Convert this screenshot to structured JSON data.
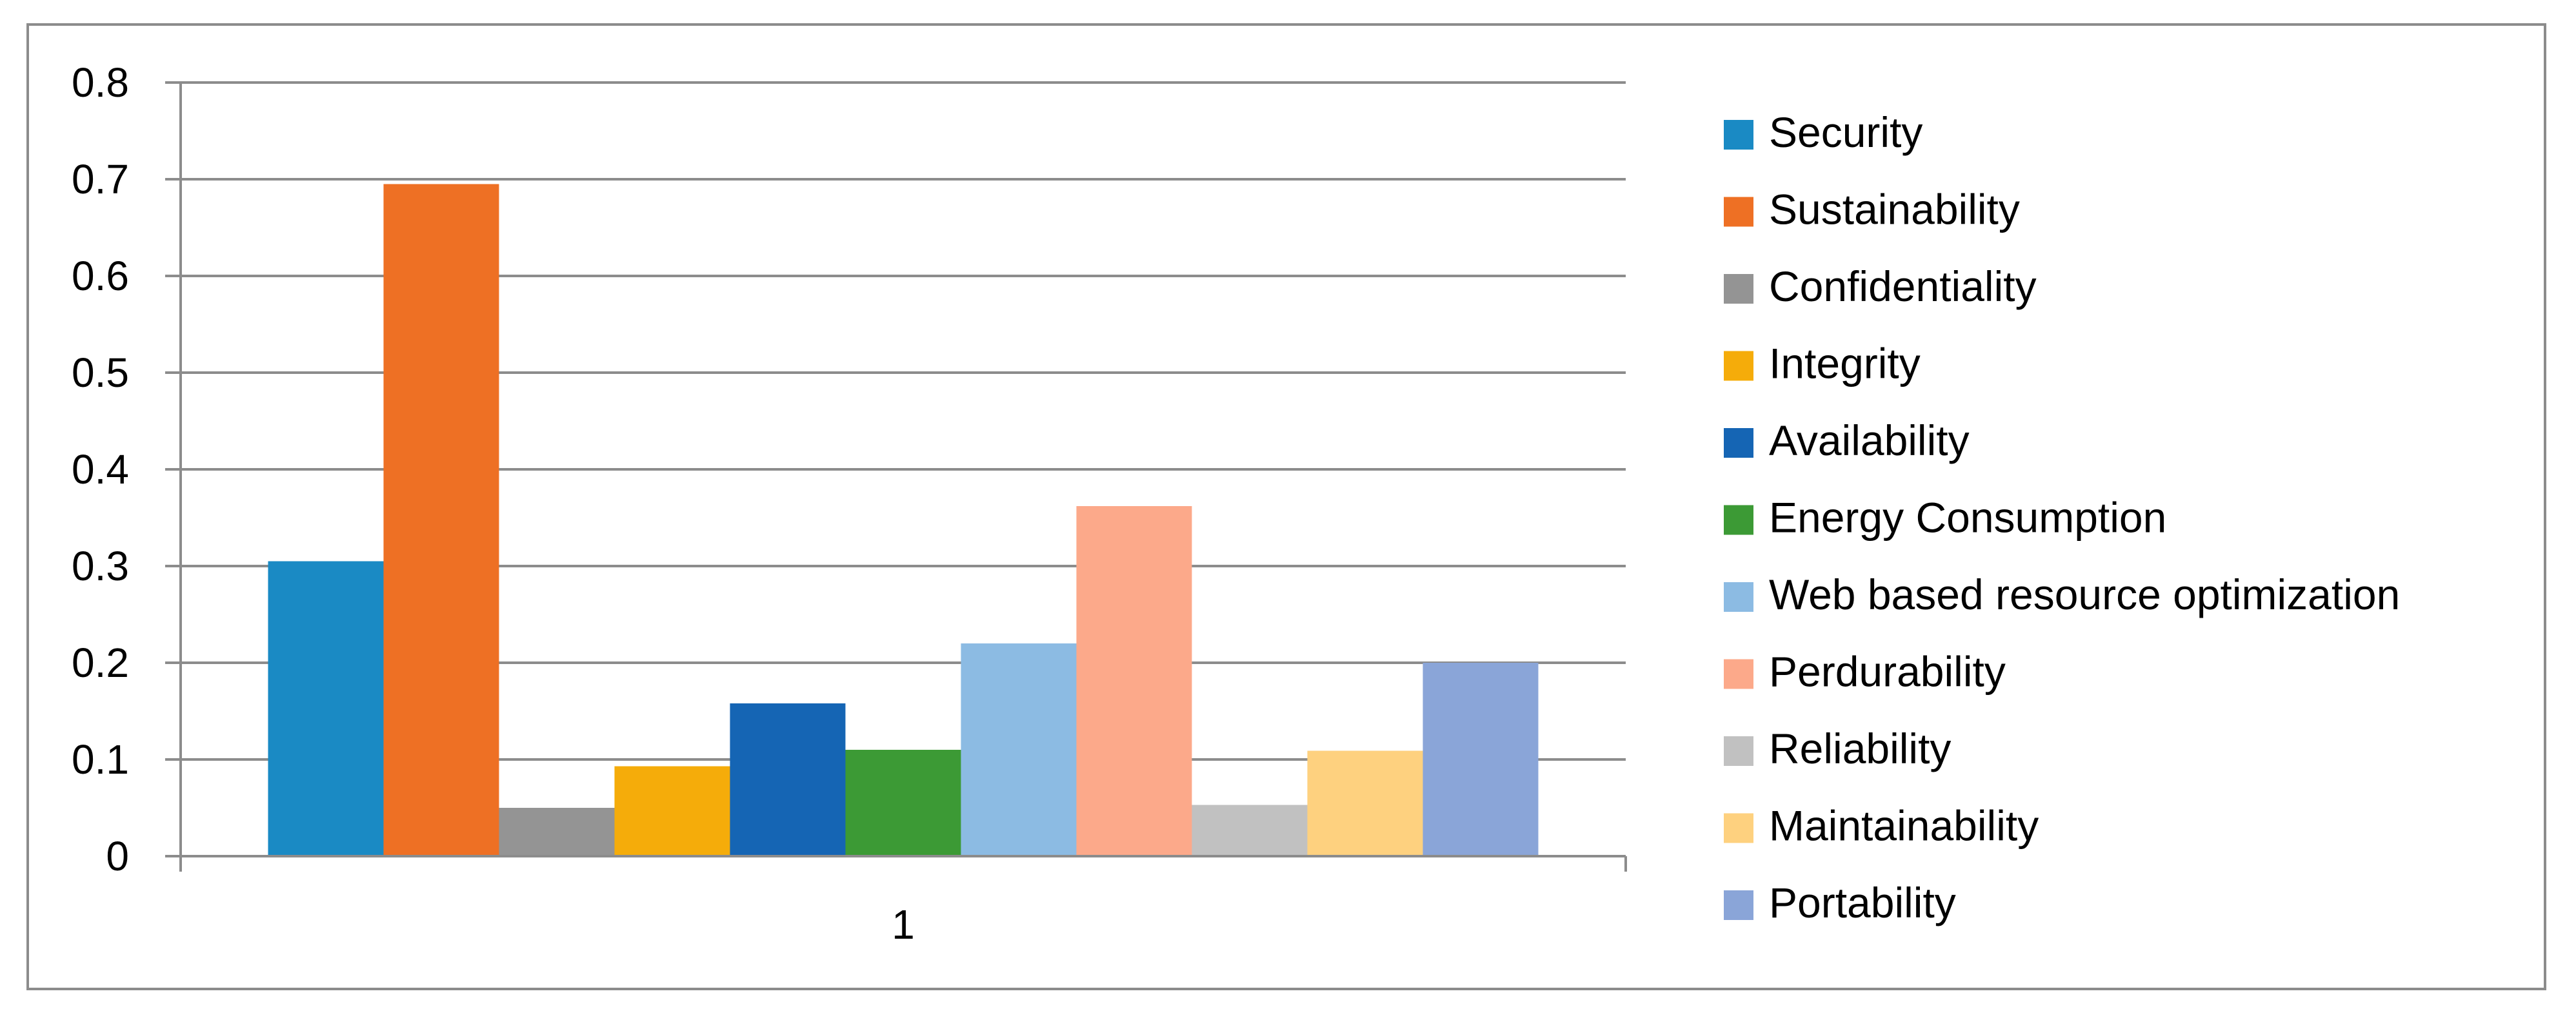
{
  "chart_data": {
    "type": "bar",
    "categories": [
      "1"
    ],
    "ylim": [
      0,
      0.8
    ],
    "yticks": [
      0,
      0.1,
      0.2,
      0.3,
      0.4,
      0.5,
      0.6,
      0.7,
      0.8
    ],
    "ytick_labels": [
      "0",
      "0.1",
      "0.2",
      "0.3",
      "0.4",
      "0.5",
      "0.6",
      "0.7",
      "0.8"
    ],
    "grid": true,
    "legend_position": "right",
    "series": [
      {
        "name": "Security",
        "values": [
          0.305
        ],
        "color": "#1a8ac4"
      },
      {
        "name": "Sustainability",
        "values": [
          0.695
        ],
        "color": "#ee7024"
      },
      {
        "name": "Confidentiality",
        "values": [
          0.05
        ],
        "color": "#949494"
      },
      {
        "name": "Integrity",
        "values": [
          0.093
        ],
        "color": "#f5ac0a"
      },
      {
        "name": "Availability",
        "values": [
          0.158
        ],
        "color": "#1565b4"
      },
      {
        "name": "Energy Consumption",
        "values": [
          0.11
        ],
        "color": "#3c9a35"
      },
      {
        "name": "Web based resource optimization",
        "values": [
          0.22
        ],
        "color": "#8cbbe3"
      },
      {
        "name": "Perdurability",
        "values": [
          0.362
        ],
        "color": "#fca98a"
      },
      {
        "name": "Reliability",
        "values": [
          0.053
        ],
        "color": "#c1c1c1"
      },
      {
        "name": "Maintainability",
        "values": [
          0.109
        ],
        "color": "#fed17f"
      },
      {
        "name": "Portability",
        "values": [
          0.2
        ],
        "color": "#8aa5d8"
      }
    ]
  }
}
